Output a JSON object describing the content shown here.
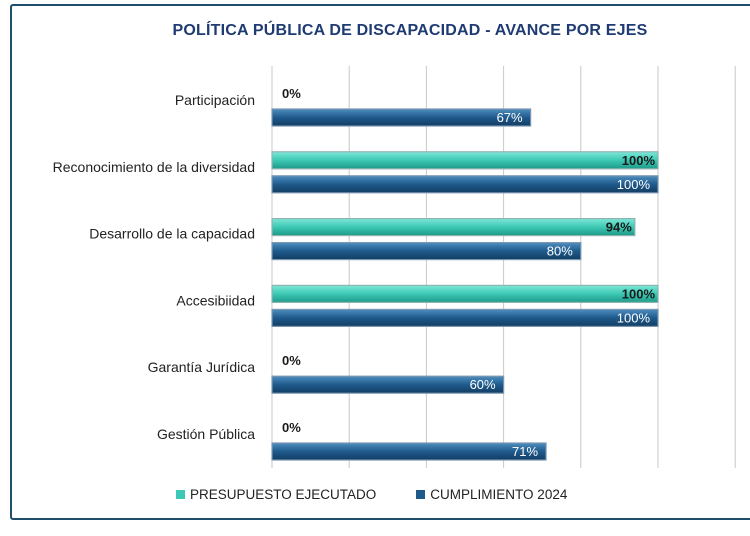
{
  "chart_data": {
    "type": "bar",
    "orientation": "horizontal",
    "title": "POLÍTICA PÚBLICA DE DISCAPACIDAD - AVANCE  POR EJES",
    "categories": [
      "Participación",
      "Reconocimiento de la diversidad",
      "Desarrollo de la capacidad",
      "Accesibiidad",
      "Garantía Jurídica",
      "Gestión Pública"
    ],
    "series": [
      {
        "name": "PRESUPUESTO EJECUTADO",
        "values": [
          0,
          100,
          94,
          100,
          0,
          0
        ],
        "labels": [
          "0%",
          "100%",
          "94%",
          "100%",
          "0%",
          "0%"
        ],
        "color": "#3cc8b4"
      },
      {
        "name": "CUMPLIMIENTO 2024",
        "values": [
          67,
          100,
          80,
          100,
          60,
          71
        ],
        "labels": [
          "67%",
          "100%",
          "80%",
          "100%",
          "60%",
          "71%"
        ],
        "color": "#1f5a8c"
      }
    ],
    "xlim": [
      0,
      120
    ],
    "grid": true,
    "legend": "bottom"
  }
}
